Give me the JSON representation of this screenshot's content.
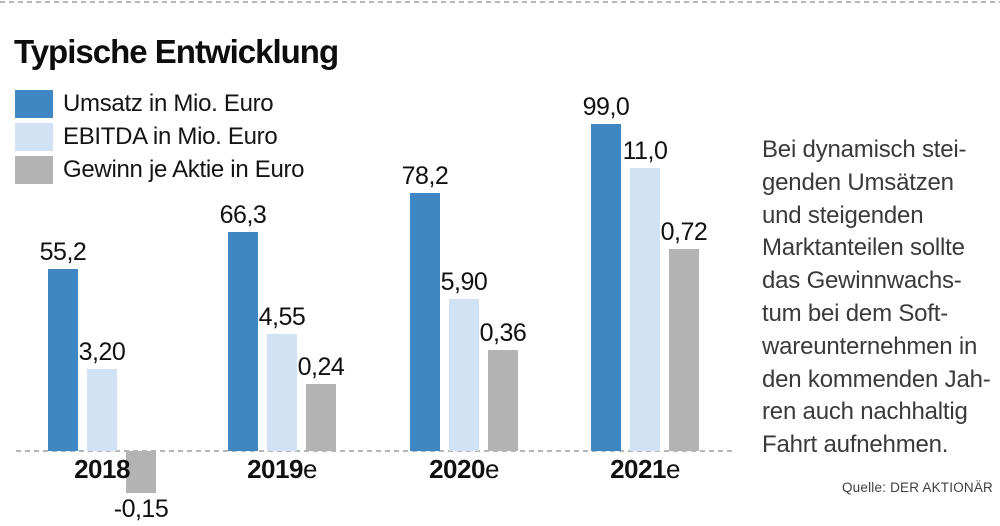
{
  "chart_data": {
    "type": "bar",
    "title": "Typische Entwicklung",
    "legend_position": "top-left",
    "grid": false,
    "axis": {
      "baseline_style": "dashed",
      "baseline_color": "#b3b6b8",
      "top_rule_style": "dashed"
    },
    "categories": [
      {
        "year": "2018",
        "suffix": ""
      },
      {
        "year": "2019",
        "suffix": "e"
      },
      {
        "year": "2020",
        "suffix": "e"
      },
      {
        "year": "2021",
        "suffix": "e"
      }
    ],
    "series": [
      {
        "name": "Umsatz in Mio. Euro",
        "color": "#3e87c2",
        "values": [
          55.2,
          66.3,
          78.2,
          99.0
        ],
        "labels": [
          "55,2",
          "66,3",
          "78,2",
          "99,0"
        ]
      },
      {
        "name": "EBITDA in Mio. Euro",
        "color": "#d0e2f3",
        "values": [
          3.2,
          4.55,
          5.9,
          11.0
        ],
        "labels": [
          "3,20",
          "4,55",
          "5,90",
          "11,0"
        ]
      },
      {
        "name": "Gewinn je Aktie in Euro",
        "color": "#b3b3b3",
        "values": [
          -0.15,
          0.24,
          0.36,
          0.72
        ],
        "labels": [
          "-0,15",
          "0,24",
          "0,36",
          "0,72"
        ]
      }
    ]
  },
  "commentary": {
    "lines": [
      "Bei dynamisch stei-",
      "genden Umsätzen",
      "und steigenden",
      "Marktanteilen sollte",
      "das Gewinnwachs-",
      "tum bei dem Soft-",
      "wareunternehmen in",
      "den kommenden Jah-",
      "ren auch nachhaltig",
      "Fahrt aufnehmen."
    ]
  },
  "source": {
    "label": "Quelle: DER AKTIONÄR"
  }
}
